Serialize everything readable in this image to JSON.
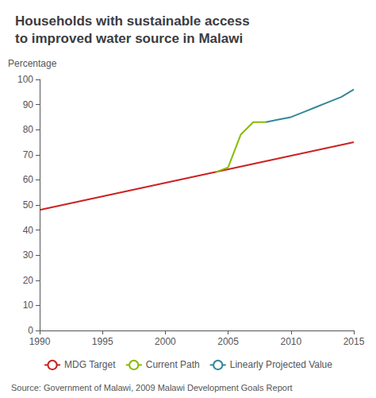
{
  "chart_data": {
    "type": "line",
    "title": "Households with sustainable access\nto improved water source in Malawi",
    "ylabel": "Percentage",
    "annotations": [
      "Source: Government of Malawi, 2009 Malawi Development Goals Report"
    ],
    "series": [
      {
        "name": "MDG Target",
        "color": "#cc2222",
        "x": [
          1990,
          2015
        ],
        "values": [
          48,
          75
        ]
      },
      {
        "name": "Current Path",
        "color": "#88bb00",
        "x": [
          2004,
          2005,
          2006,
          2007,
          2008
        ],
        "values": [
          63,
          65,
          78,
          83,
          83
        ]
      },
      {
        "name": "Linearly Projected Value",
        "color": "#338899",
        "x": [
          2008,
          2009,
          2010,
          2011,
          2012,
          2013,
          2014,
          2015
        ],
        "values": [
          83,
          84,
          85,
          87,
          89,
          91,
          93,
          96
        ]
      }
    ],
    "xlim": [
      1990,
      2015
    ],
    "ylim": [
      0,
      100
    ],
    "xticks": [
      1990,
      1995,
      2000,
      2005,
      2010,
      2015
    ],
    "yticks": [
      0,
      10,
      20,
      30,
      40,
      50,
      60,
      70,
      80,
      90,
      100
    ],
    "grid": false,
    "legend": "bottom"
  }
}
